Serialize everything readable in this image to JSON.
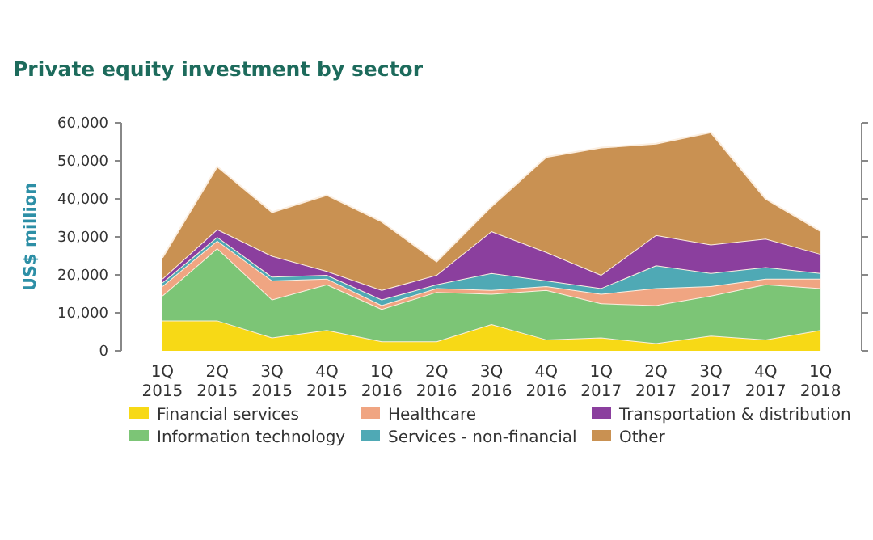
{
  "chart_data": {
    "type": "area",
    "stacked": true,
    "title": "Private equity investment by sector",
    "ylabel": "US$ million",
    "categories": [
      "1Q 2015",
      "2Q 2015",
      "3Q 2015",
      "4Q 2015",
      "1Q 2016",
      "2Q 2016",
      "3Q 2016",
      "4Q 2016",
      "1Q 2017",
      "2Q 2017",
      "3Q 2017",
      "4Q 2017",
      "1Q 2018"
    ],
    "ylim": [
      0,
      60000
    ],
    "yticks": [
      {
        "value": 0,
        "label": "0"
      },
      {
        "value": 10000,
        "label": "10,000"
      },
      {
        "value": 20000,
        "label": "20,000"
      },
      {
        "value": 30000,
        "label": "30,000"
      },
      {
        "value": 40000,
        "label": "40,000"
      },
      {
        "value": 50000,
        "label": "50,000"
      },
      {
        "value": 60000,
        "label": "60,000"
      }
    ],
    "legend": "bottom",
    "series": [
      {
        "name": "Financial services",
        "color": "#f7d916",
        "values": [
          8000,
          8000,
          3500,
          5500,
          2500,
          2500,
          7000,
          3000,
          3500,
          2000,
          4000,
          3000,
          5500
        ]
      },
      {
        "name": "Information technology",
        "color": "#7cc576",
        "values": [
          6500,
          19000,
          10000,
          12000,
          8500,
          13000,
          8000,
          13000,
          9000,
          10000,
          10500,
          14500,
          11000
        ]
      },
      {
        "name": "Healthcare",
        "color": "#f0a582",
        "values": [
          2500,
          2000,
          5000,
          1500,
          1000,
          1000,
          1000,
          1000,
          2500,
          4500,
          2500,
          1500,
          2500
        ]
      },
      {
        "name": "Services - non-financial",
        "color": "#4fa9b5",
        "values": [
          1000,
          1000,
          1000,
          1000,
          1500,
          1000,
          4500,
          1500,
          1500,
          6000,
          3500,
          3000,
          1500
        ]
      },
      {
        "name": "Transportation & distribution",
        "color": "#8b3f9e",
        "values": [
          1000,
          2000,
          5500,
          1000,
          2500,
          2500,
          11000,
          7500,
          3500,
          8000,
          7500,
          7500,
          5000
        ]
      },
      {
        "name": "Other",
        "color": "#c99152",
        "values": [
          5500,
          16500,
          11500,
          20000,
          18000,
          3500,
          6500,
          25000,
          33500,
          24000,
          29500,
          10500,
          6000
        ]
      }
    ]
  }
}
